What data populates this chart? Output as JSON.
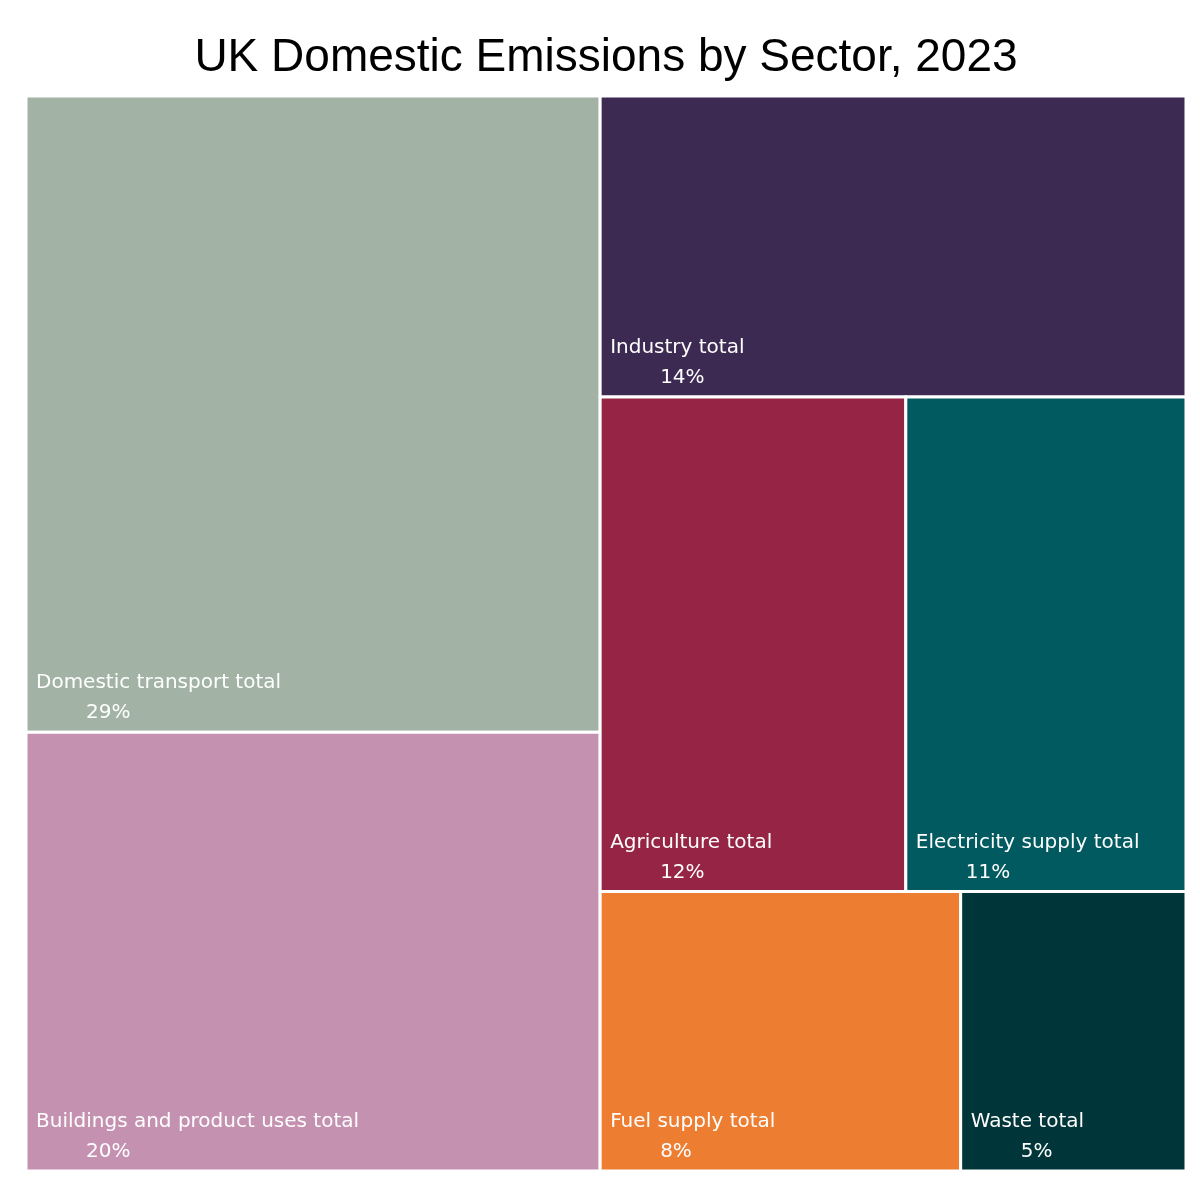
{
  "chart_data": {
    "type": "other",
    "title": "UK Domestic Emissions by Sector, 2023",
    "categories": [
      "Domestic transport total",
      "Buildings and product uses total",
      "Industry total",
      "Agriculture total",
      "Electricity supply total",
      "Fuel supply total",
      "Waste total"
    ],
    "values": [
      29,
      20,
      14,
      12,
      11,
      8,
      5
    ],
    "value_labels": [
      "29%",
      "20%",
      "14%",
      "12%",
      "11%",
      "8%",
      "5%"
    ],
    "colors": [
      "#a2b3a6",
      "#c491b0",
      "#3d2a53",
      "#962545",
      "#005a60",
      "#ed7d31",
      "#003539"
    ]
  }
}
